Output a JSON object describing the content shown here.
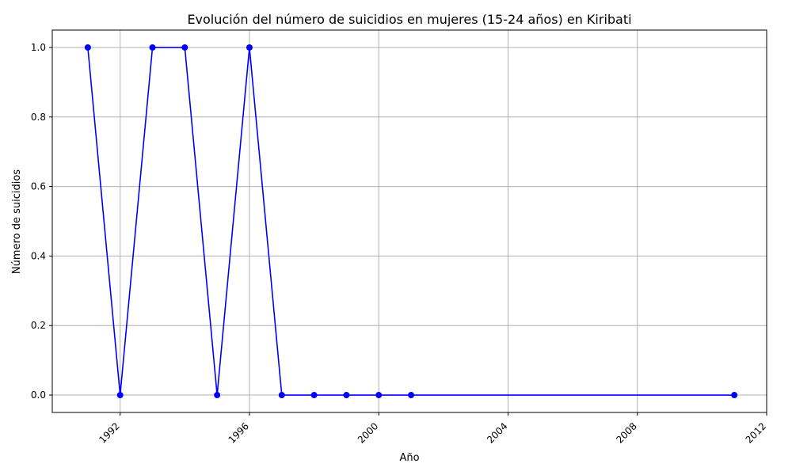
{
  "chart_data": {
    "type": "line",
    "title": "Evolución del número de suicidios en mujeres (15-24 años) en Kiribati",
    "xlabel": "Año",
    "ylabel": "Número de suicidios",
    "xlim": [
      1989.9,
      2012
    ],
    "ylim": [
      -0.05,
      1.05
    ],
    "xticks": [
      1992,
      1996,
      2000,
      2004,
      2008,
      2012
    ],
    "yticks": [
      0.0,
      0.2,
      0.4,
      0.6,
      0.8,
      1.0
    ],
    "yticks_format": "0.1f",
    "xtick_rotation": 45,
    "grid": true,
    "series": [
      {
        "color": "#0000ff",
        "marker": "circle",
        "points": [
          {
            "x": 1991,
            "y": 1
          },
          {
            "x": 1992,
            "y": 0
          },
          {
            "x": 1993,
            "y": 1
          },
          {
            "x": 1994,
            "y": 1
          },
          {
            "x": 1995,
            "y": 0
          },
          {
            "x": 1996,
            "y": 1
          },
          {
            "x": 1997,
            "y": 0
          },
          {
            "x": 1998,
            "y": 0
          },
          {
            "x": 1999,
            "y": 0
          },
          {
            "x": 2000,
            "y": 0
          },
          {
            "x": 2001,
            "y": 0
          },
          {
            "x": 2011,
            "y": 0
          }
        ]
      }
    ]
  }
}
